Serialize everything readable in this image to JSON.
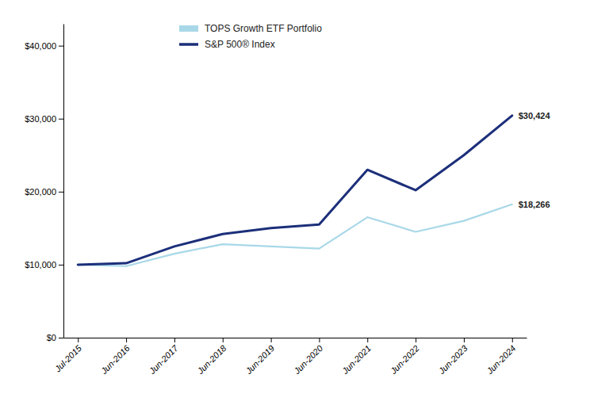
{
  "chart_data": {
    "type": "line",
    "categories": [
      "Jul-2015",
      "Jun-2016",
      "Jun-2017",
      "Jun-2018",
      "Jun-2019",
      "Jun-2020",
      "Jun-2021",
      "Jun-2022",
      "Jun-2023",
      "Jun-2024"
    ],
    "series": [
      {
        "name": "TOPS Growth ETF Portfolio",
        "color": "#a8d8e8",
        "values": [
          10000,
          9800,
          11500,
          12800,
          12500,
          12200,
          16500,
          14500,
          16000,
          18266
        ],
        "value_labels": [
          null,
          null,
          null,
          null,
          null,
          null,
          null,
          null,
          null,
          "$18,266"
        ]
      },
      {
        "name": "S&P 500® Index",
        "color": "#1c2f7a",
        "values": [
          10000,
          10200,
          12500,
          14200,
          15000,
          15500,
          23000,
          20200,
          25000,
          30424
        ],
        "value_labels": [
          null,
          null,
          null,
          null,
          null,
          null,
          null,
          null,
          null,
          "$30,424"
        ]
      }
    ],
    "ylim": [
      0,
      43000
    ],
    "yticks": [
      {
        "value": 0,
        "label": "$0"
      },
      {
        "value": 10000,
        "label": "$10,000"
      },
      {
        "value": 20000,
        "label": "$20,000"
      },
      {
        "value": 30000,
        "label": "$30,000"
      },
      {
        "value": 40000,
        "label": "$40,000"
      }
    ],
    "grid": false,
    "legend": "upper left"
  }
}
